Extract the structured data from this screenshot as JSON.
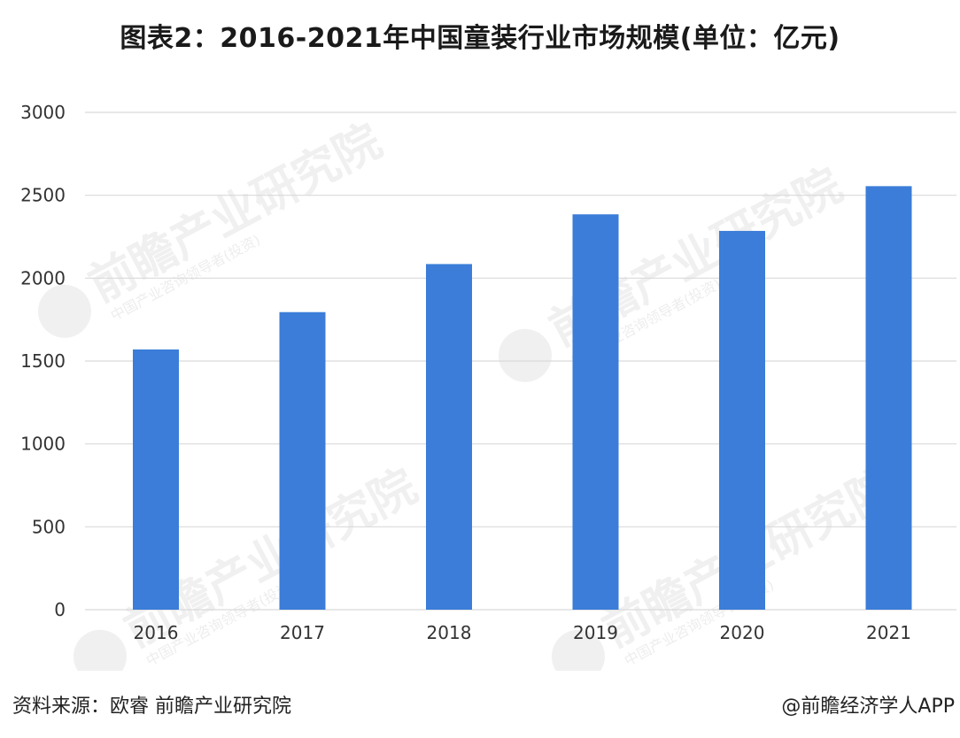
{
  "title": "图表2：2016-2021年中国童装行业市场规模(单位：亿元)",
  "footer": {
    "source": "资料来源：欧睿 前瞻产业研究院",
    "credit": "@前瞻经济学人APP"
  },
  "watermark": {
    "main": "前瞻产业研究院",
    "sub": "中国产业咨询领导者(投资)"
  },
  "colors": {
    "bar": "#3b7dd8",
    "grid": "#d9d9d9",
    "axis_text": "#333333"
  },
  "chart_data": {
    "type": "bar",
    "categories": [
      "2016",
      "2017",
      "2018",
      "2019",
      "2020",
      "2021"
    ],
    "values": [
      1570,
      1795,
      2085,
      2385,
      2285,
      2555
    ],
    "ylim": [
      0,
      3000
    ],
    "yticks": [
      "0",
      "500",
      "1000",
      "1500",
      "2000",
      "2500",
      "3000"
    ],
    "grid": true,
    "legend": "none"
  }
}
